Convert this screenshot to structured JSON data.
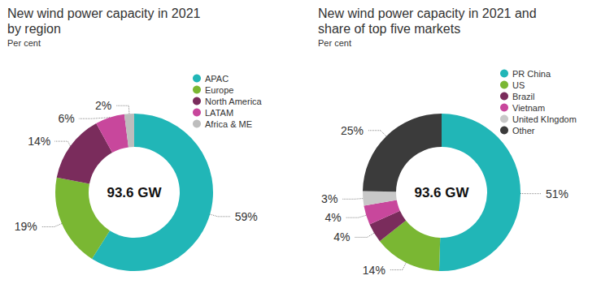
{
  "chart_data": [
    {
      "type": "pie",
      "title": "New wind power capacity in 2021 by region",
      "subtitle": "Per cent",
      "annotation": "93.6 GW",
      "categories": [
        "APAC",
        "Europe",
        "North America",
        "LATAM",
        "Africa & ME"
      ],
      "values": [
        59,
        19,
        14,
        6,
        2
      ],
      "value_labels": [
        "59%",
        "19%",
        "14%",
        "6%",
        "2%"
      ],
      "colors": [
        "#21b6b7",
        "#7ab733",
        "#7a2c5c",
        "#c8479c",
        "#bdbdbd"
      ],
      "data_labels": true,
      "legend": "right"
    },
    {
      "type": "pie",
      "title": "New wind power capacity in 2021 and share of top five markets",
      "subtitle": "Per cent",
      "annotation": "93.6 GW",
      "categories": [
        "PR China",
        "US",
        "Brazil",
        "Vietnam",
        "United KIngdom",
        "Other"
      ],
      "values": [
        51,
        14,
        4,
        4,
        3,
        25
      ],
      "value_labels": [
        "51%",
        "14%",
        "4%",
        "4%",
        "3%",
        "25%"
      ],
      "colors": [
        "#21b6b7",
        "#7ab733",
        "#7a2c5c",
        "#c8479c",
        "#c8c8c8",
        "#3b3b3b"
      ],
      "data_labels": true,
      "legend": "right"
    }
  ]
}
